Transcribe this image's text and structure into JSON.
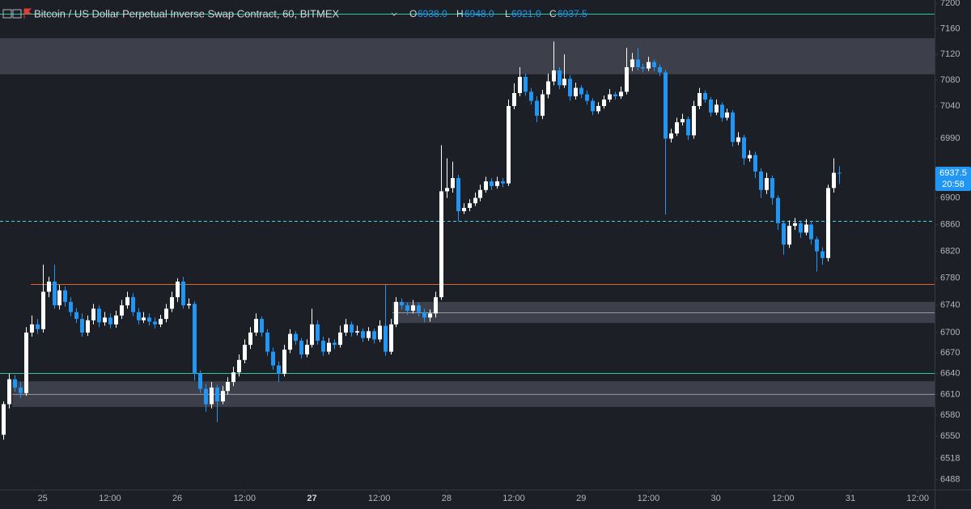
{
  "header": {
    "symbol": "Bitcoin / US Dollar Perpetual Inverse Swap Contract, 60, BITMEX",
    "legend": [
      {
        "key": "O",
        "value": "6938.0"
      },
      {
        "key": "H",
        "value": "6948.0"
      },
      {
        "key": "L",
        "value": "6921.0"
      },
      {
        "key": "C",
        "value": "6937.5"
      }
    ]
  },
  "chart_data": {
    "type": "candlestick",
    "log_scale": true,
    "up_color": "#ffffff",
    "down_color": "#2196f3",
    "ylim": [
      6474,
      7205
    ],
    "yticks": [
      7200,
      7160,
      7120,
      7080,
      7040,
      6990,
      6900,
      6860,
      6820,
      6780,
      6740,
      6700,
      6670,
      6640,
      6610,
      6580,
      6550,
      6518,
      6488
    ],
    "xlim": [
      -0.6,
      166
    ],
    "xticks": [
      {
        "value": 7,
        "label": "25"
      },
      {
        "value": 19,
        "label": "12:00"
      },
      {
        "value": 31,
        "label": "26"
      },
      {
        "value": 43,
        "label": "12:00"
      },
      {
        "value": 55,
        "label": "27",
        "bold": true
      },
      {
        "value": 67,
        "label": "12:00"
      },
      {
        "value": 79,
        "label": "28"
      },
      {
        "value": 91,
        "label": "12:00"
      },
      {
        "value": 103,
        "label": "29"
      },
      {
        "value": 115,
        "label": "12:00"
      },
      {
        "value": 127,
        "label": "30"
      },
      {
        "value": 139,
        "label": "12:00"
      },
      {
        "value": 151,
        "label": "31"
      },
      {
        "value": 163,
        "label": "12:00"
      }
    ],
    "open": [
      6552,
      6596,
      6632,
      6620,
      6612,
      6700,
      6712,
      6705,
      6760,
      6775,
      6740,
      6762,
      6745,
      6730,
      6720,
      6700,
      6718,
      6735,
      6715,
      6722,
      6712,
      6725,
      6740,
      6752,
      6730,
      6718,
      6722,
      6716,
      6712,
      6720,
      6735,
      6752,
      6775,
      6740,
      6742,
      6640,
      6618,
      6596,
      6620,
      6600,
      6615,
      6628,
      6642,
      6660,
      6682,
      6700,
      6720,
      6700,
      6672,
      6652,
      6640,
      6675,
      6698,
      6688,
      6668,
      6682,
      6712,
      6688,
      6672,
      6685,
      6682,
      6700,
      6712,
      6700,
      6702,
      6692,
      6702,
      6690,
      6710,
      6672,
      6712,
      6745,
      6740,
      6732,
      6740,
      6730,
      6722,
      6728,
      6752,
      6910,
      6915,
      6930,
      6880,
      6885,
      6892,
      6900,
      6912,
      6925,
      6918,
      6925,
      6922,
      7040,
      7060,
      7085,
      7062,
      7048,
      7025,
      7058,
      7078,
      7095,
      7072,
      7082,
      7055,
      7068,
      7058,
      7048,
      7032,
      7040,
      7050,
      7058,
      7055,
      7062,
      7100,
      7112,
      7100,
      7098,
      7108,
      7100,
      7092,
      6990,
      6998,
      7015,
      7020,
      6995,
      7040,
      7060,
      7050,
      7030,
      7042,
      7022,
      7030,
      6985,
      6992,
      6960,
      6965,
      6940,
      6912,
      6930,
      6900,
      6862,
      6830,
      6858,
      6862,
      6848,
      6860,
      6838,
      6820,
      6810,
      6915,
      6938
    ],
    "high": [
      6600,
      6640,
      6638,
      6628,
      6708,
      6725,
      6720,
      6800,
      6782,
      6800,
      6770,
      6768,
      6752,
      6736,
      6728,
      6725,
      6742,
      6740,
      6730,
      6728,
      6732,
      6748,
      6760,
      6758,
      6736,
      6730,
      6728,
      6722,
      6726,
      6742,
      6760,
      6780,
      6782,
      6750,
      6746,
      6645,
      6625,
      6628,
      6624,
      6622,
      6635,
      6650,
      6668,
      6690,
      6708,
      6728,
      6724,
      6705,
      6678,
      6658,
      6682,
      6705,
      6702,
      6692,
      6690,
      6735,
      6718,
      6694,
      6692,
      6690,
      6710,
      6720,
      6716,
      6710,
      6706,
      6708,
      6706,
      6718,
      6770,
      6720,
      6752,
      6750,
      6744,
      6748,
      6744,
      6735,
      6734,
      6760,
      6980,
      6960,
      6955,
      6935,
      6892,
      6898,
      6908,
      6920,
      6932,
      6930,
      6932,
      6930,
      7050,
      7075,
      7100,
      7090,
      7068,
      7055,
      7065,
      7090,
      7140,
      7100,
      7120,
      7088,
      7076,
      7072,
      7064,
      7052,
      7046,
      7056,
      7066,
      7062,
      7070,
      7130,
      7122,
      7130,
      7105,
      7116,
      7112,
      7104,
      7096,
      7005,
      7022,
      7028,
      7024,
      7048,
      7068,
      7064,
      7054,
      7050,
      7046,
      7036,
      7034,
      7000,
      6996,
      6972,
      6970,
      6945,
      6938,
      6934,
      6904,
      6866,
      6866,
      6870,
      6866,
      6868,
      6864,
      6842,
      6826,
      6920,
      6960,
      6948
    ],
    "low": [
      6545,
      6590,
      6614,
      6605,
      6608,
      6694,
      6698,
      6700,
      6752,
      6735,
      6734,
      6738,
      6724,
      6714,
      6694,
      6695,
      6712,
      6708,
      6710,
      6706,
      6707,
      6720,
      6735,
      6724,
      6712,
      6714,
      6710,
      6706,
      6708,
      6715,
      6730,
      6745,
      6735,
      6735,
      6630,
      6612,
      6585,
      6590,
      6570,
      6596,
      6610,
      6622,
      6636,
      6655,
      6676,
      6695,
      6694,
      6666,
      6646,
      6628,
      6636,
      6670,
      6682,
      6662,
      6664,
      6678,
      6682,
      6666,
      6668,
      6676,
      6678,
      6695,
      6694,
      6696,
      6686,
      6688,
      6684,
      6686,
      6666,
      6668,
      6708,
      6734,
      6726,
      6728,
      6724,
      6715,
      6716,
      6722,
      6748,
      6900,
      6908,
      6865,
      6876,
      6880,
      6888,
      6895,
      6908,
      6912,
      6914,
      6916,
      6918,
      7035,
      7055,
      7056,
      7042,
      7015,
      7020,
      7052,
      7072,
      7066,
      7068,
      7048,
      7050,
      7052,
      7042,
      7026,
      7028,
      7036,
      7046,
      7050,
      7051,
      7058,
      7094,
      7095,
      7092,
      7094,
      7094,
      7086,
      6875,
      6984,
      6994,
      7010,
      6988,
      6990,
      7035,
      7045,
      7024,
      7026,
      7016,
      7018,
      6978,
      6980,
      6950,
      6955,
      6930,
      6900,
      6906,
      6890,
      6852,
      6815,
      6825,
      6852,
      6840,
      6844,
      6830,
      6790,
      6800,
      6805,
      6908,
      6921
    ],
    "close": [
      6596,
      6632,
      6620,
      6612,
      6700,
      6712,
      6705,
      6760,
      6775,
      6740,
      6762,
      6745,
      6730,
      6720,
      6700,
      6718,
      6735,
      6715,
      6722,
      6712,
      6725,
      6740,
      6752,
      6730,
      6718,
      6722,
      6716,
      6712,
      6720,
      6735,
      6752,
      6775,
      6740,
      6742,
      6640,
      6618,
      6596,
      6620,
      6600,
      6615,
      6628,
      6642,
      6660,
      6682,
      6700,
      6720,
      6700,
      6672,
      6652,
      6640,
      6675,
      6698,
      6688,
      6668,
      6682,
      6712,
      6688,
      6672,
      6685,
      6682,
      6700,
      6712,
      6700,
      6702,
      6692,
      6702,
      6690,
      6710,
      6672,
      6712,
      6745,
      6740,
      6732,
      6740,
      6730,
      6722,
      6728,
      6752,
      6910,
      6915,
      6930,
      6880,
      6885,
      6892,
      6900,
      6912,
      6925,
      6918,
      6925,
      6922,
      7040,
      7060,
      7085,
      7062,
      7048,
      7025,
      7058,
      7078,
      7095,
      7072,
      7082,
      7055,
      7068,
      7058,
      7048,
      7032,
      7040,
      7050,
      7058,
      7055,
      7062,
      7100,
      7112,
      7100,
      7098,
      7108,
      7100,
      7092,
      6990,
      6998,
      7015,
      7020,
      6995,
      7040,
      7060,
      7050,
      7030,
      7042,
      7022,
      7030,
      6985,
      6992,
      6960,
      6965,
      6940,
      6912,
      6930,
      6900,
      6862,
      6830,
      6858,
      6862,
      6848,
      6860,
      6838,
      6820,
      6810,
      6915,
      6938,
      6937.5
    ],
    "zones": [
      {
        "from": 7089,
        "to": 7145,
        "start": -0.6
      },
      {
        "from": 6714,
        "to": 6745,
        "mid": 6729,
        "start": 69.4
      },
      {
        "from": 6592,
        "to": 6629,
        "mid": 6610,
        "start": 1.6
      }
    ],
    "levels": [
      {
        "price": 7183,
        "color": "#26c6a0",
        "start": -0.6
      },
      {
        "price": 6866,
        "color": "#4dd0e1",
        "dashed": true,
        "start": -0.6
      },
      {
        "price": 6772,
        "color": "#e0642a",
        "start": 4.9
      },
      {
        "price": 6641,
        "color": "#26c6a0",
        "start": -0.6
      }
    ],
    "last_price": 6937.5,
    "countdown": "20:58"
  }
}
